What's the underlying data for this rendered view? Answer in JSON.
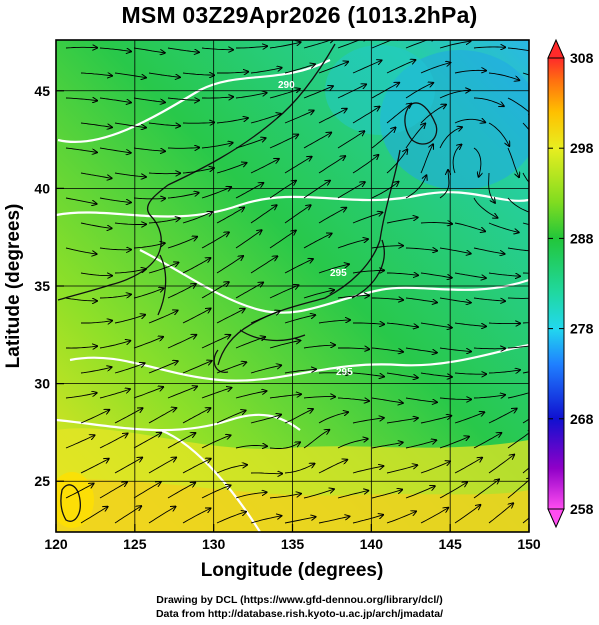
{
  "title": "MSM 03Z29Apr2026 (1013.2hPa)",
  "x_axis": {
    "label": "Longitude (degrees)",
    "ticks": [
      "120",
      "125",
      "130",
      "135",
      "140",
      "145",
      "150"
    ],
    "range": [
      120,
      150
    ]
  },
  "y_axis": {
    "label": "Latitude  (degrees)",
    "ticks": [
      "25",
      "30",
      "35",
      "40",
      "45"
    ],
    "range": [
      22.4,
      47.6
    ]
  },
  "colorbar": {
    "ticks": [
      "308",
      "298",
      "288",
      "278",
      "268",
      "258"
    ],
    "range": [
      258,
      308
    ],
    "colors": [
      "#ff4df0",
      "#9000c8",
      "#1010d0",
      "#1f7fff",
      "#22d8ee",
      "#20d8a0",
      "#22c63a",
      "#80dc20",
      "#e8ee20",
      "#ffc000",
      "#ff7010",
      "#ff2a2a"
    ]
  },
  "contour_labels": [
    "290",
    "295",
    "295"
  ],
  "credits": [
    "Drawing by DCL (https://www.gfd-dennou.org/library/dcl/)",
    "Data from http://database.rish.kyoto-u.ac.jp/arch/jmadata/"
  ]
}
